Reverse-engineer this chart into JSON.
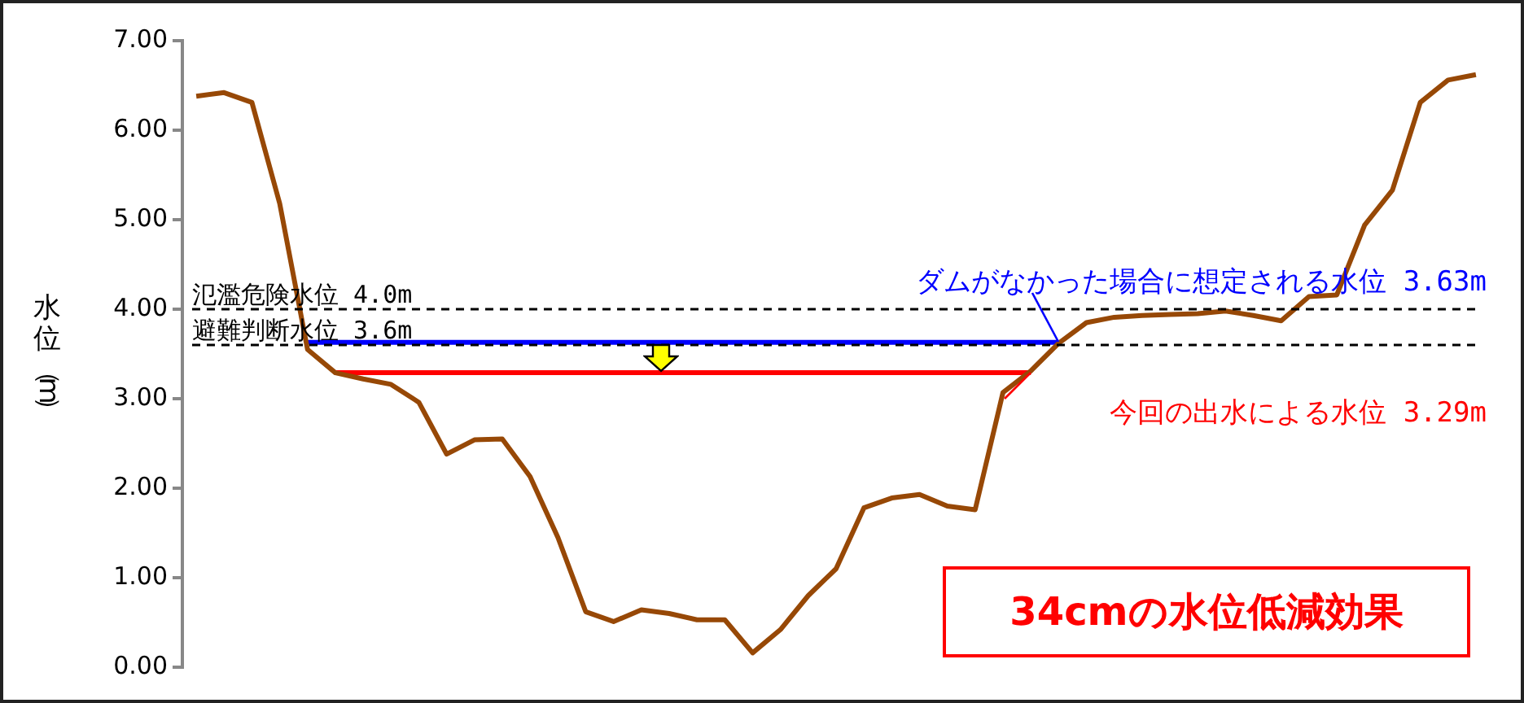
{
  "chart_data": {
    "type": "line",
    "ylabel": "水位（m）",
    "categories": [
      null,
      null,
      null,
      null,
      null,
      null,
      null,
      null,
      null,
      null,
      null,
      null,
      null,
      null,
      null,
      null,
      null,
      null,
      null,
      null,
      null,
      null,
      null,
      null,
      null,
      null,
      null,
      null,
      null,
      null,
      null,
      null,
      null,
      null,
      null,
      null,
      null,
      null,
      null,
      null,
      null,
      null,
      null,
      null,
      null,
      null,
      null
    ],
    "series": [
      {
        "color": "#974806",
        "values": [
          6.38,
          6.42,
          6.31,
          5.18,
          3.55,
          3.29,
          3.22,
          3.16,
          2.96,
          2.38,
          2.54,
          2.55,
          2.13,
          1.45,
          0.62,
          0.51,
          0.64,
          0.6,
          0.53,
          0.53,
          0.16,
          0.42,
          0.8,
          1.1,
          1.78,
          1.89,
          1.93,
          1.8,
          1.76,
          3.07,
          3.31,
          3.62,
          3.85,
          3.91,
          3.93,
          3.94,
          3.95,
          3.98,
          3.93,
          3.87,
          4.14,
          4.16,
          4.94,
          5.33,
          6.31,
          6.56,
          6.62
        ]
      },
      {
        "color": "#0000ff",
        "values": [
          null,
          null,
          null,
          null,
          3.63,
          3.63,
          3.63,
          3.63,
          3.63,
          3.63,
          3.63,
          3.63,
          3.63,
          3.63,
          3.63,
          3.63,
          3.63,
          3.63,
          3.63,
          3.63,
          3.63,
          3.63,
          3.63,
          3.63,
          3.63,
          3.63,
          3.63,
          3.63,
          3.63,
          3.63,
          3.63,
          3.63,
          null,
          null,
          null,
          null,
          null,
          null,
          null,
          null,
          null,
          null,
          null,
          null,
          null,
          null,
          null
        ]
      },
      {
        "color": "#ff0000",
        "values": [
          null,
          null,
          null,
          null,
          null,
          3.29,
          3.29,
          3.29,
          3.29,
          3.29,
          3.29,
          3.29,
          3.29,
          3.29,
          3.29,
          3.29,
          3.29,
          3.29,
          3.29,
          3.29,
          3.29,
          3.29,
          3.29,
          3.29,
          3.29,
          3.29,
          3.29,
          3.29,
          3.29,
          3.29,
          3.29,
          null,
          null,
          null,
          null,
          null,
          null,
          null,
          null,
          null,
          null,
          null,
          null,
          null,
          null,
          null,
          null
        ]
      }
    ],
    "ylim": [
      0,
      7
    ],
    "yticks": [
      {
        "value": 0,
        "label": "0.00"
      },
      {
        "value": 1,
        "label": "1.00"
      },
      {
        "value": 2,
        "label": "2.00"
      },
      {
        "value": 3,
        "label": "3.00"
      },
      {
        "value": 4,
        "label": "4.00"
      },
      {
        "value": 5,
        "label": "5.00"
      },
      {
        "value": 6,
        "label": "6.00"
      },
      {
        "value": 7,
        "label": "7.00"
      }
    ],
    "ref_lines": [
      {
        "axis": "y",
        "value": 4.0,
        "label": "氾濫危険水位 4.0m",
        "color": "#000000",
        "line_style": "dashed"
      },
      {
        "axis": "y",
        "value": 3.6,
        "label": "避難判断水位 3.6m",
        "color": "#000000",
        "line_style": "dashed"
      }
    ],
    "annotations": [
      "ダムがなかった場合に想定される水位 3.63m",
      "今回の出水による水位 3.29m",
      "34cmの水位低減効果"
    ],
    "grid": false,
    "legend": false,
    "tick_labels": "y",
    "marker": "none",
    "line_style": "solid"
  }
}
